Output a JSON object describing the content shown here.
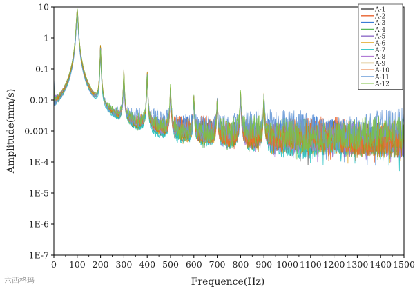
{
  "watermark": "六西格玛",
  "chart_data": {
    "type": "line",
    "title": "",
    "xlabel": "Frequence(Hz)",
    "ylabel": "Amplitude(mm/s)",
    "xlim": [
      0,
      1500
    ],
    "ylim": [
      1e-07,
      10
    ],
    "yscale": "log",
    "grid": false,
    "legend_position": "top-right",
    "x_ticks": [
      0,
      100,
      200,
      300,
      400,
      500,
      600,
      700,
      800,
      900,
      1000,
      1100,
      1200,
      1300,
      1400,
      1500
    ],
    "y_ticks": [
      1e-07,
      1e-06,
      1e-05,
      0.0001,
      0.001,
      0.01,
      0.1,
      1,
      10
    ],
    "y_tick_labels": [
      "1E-7",
      "1E-6",
      "1E-5",
      "1E-4",
      "0.001",
      "0.01",
      "0.1",
      "1",
      "10"
    ],
    "harmonic_peaks": {
      "frequencies": [
        100,
        200,
        300,
        400,
        500,
        600,
        700,
        800,
        900
      ],
      "amplitudes": [
        10,
        0.65,
        0.1,
        0.085,
        0.03,
        0.015,
        0.012,
        0.02,
        0.015
      ]
    },
    "series": [
      {
        "name": "A-1",
        "color": "#4d4d4d",
        "peak_scale": 0.9,
        "noise_level": 0.0006,
        "low_dip": 0.0002
      },
      {
        "name": "A-2",
        "color": "#e8602c",
        "peak_scale": 0.8,
        "noise_level": 0.0008,
        "low_dip": 0.0003
      },
      {
        "name": "A-3",
        "color": "#3a7bd5",
        "peak_scale": 0.7,
        "noise_level": 0.0009,
        "low_dip": 5e-05
      },
      {
        "name": "A-4",
        "color": "#57b85a",
        "peak_scale": 0.75,
        "noise_level": 0.0007,
        "low_dip": 0.0003
      },
      {
        "name": "A-5",
        "color": "#8e6bc8",
        "peak_scale": 0.85,
        "noise_level": 0.0005,
        "low_dip": 0.0002
      },
      {
        "name": "A-6",
        "color": "#e0a21c",
        "peak_scale": 0.95,
        "noise_level": 0.0006,
        "low_dip": 0.0003
      },
      {
        "name": "A-7",
        "color": "#23c2c2",
        "peak_scale": 0.7,
        "noise_level": 0.0004,
        "low_dip": 0.0002
      },
      {
        "name": "A-8",
        "color": "#b07bd6",
        "peak_scale": 0.8,
        "noise_level": 0.0005,
        "low_dip": 0.0002
      },
      {
        "name": "A-9",
        "color": "#b8860b",
        "peak_scale": 0.9,
        "noise_level": 0.0006,
        "low_dip": 0.0003
      },
      {
        "name": "A-10",
        "color": "#e8702c",
        "peak_scale": 0.85,
        "noise_level": 0.0007,
        "low_dip": 0.0003
      },
      {
        "name": "A-11",
        "color": "#6a9bd8",
        "peak_scale": 0.8,
        "noise_level": 0.0015,
        "low_dip": 0.0004
      },
      {
        "name": "A-12",
        "color": "#7cc142",
        "peak_scale": 1.0,
        "noise_level": 0.0008,
        "low_dip": 0.0003
      }
    ]
  }
}
